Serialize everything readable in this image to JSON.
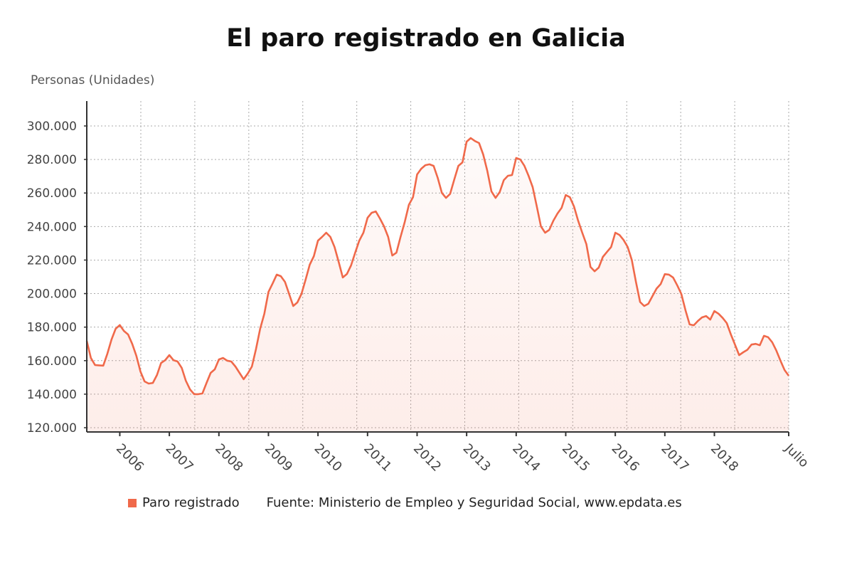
{
  "chart_data": {
    "type": "area",
    "title": "El paro registrado en Galicia",
    "ylabel": "Personas (Unidades)",
    "xlabel": "",
    "x_start": "2005-05",
    "x_end": "2019-07",
    "frequency": "monthly",
    "ylim": [
      120000,
      300000
    ],
    "yticks": [
      120000,
      140000,
      160000,
      180000,
      200000,
      220000,
      240000,
      260000,
      280000,
      300000
    ],
    "ytick_labels": [
      "120.000",
      "140.000",
      "160.000",
      "180.000",
      "200.000",
      "220.000",
      "240.000",
      "260.000",
      "280.000",
      "300.000"
    ],
    "xtick_labels": [
      "2006",
      "2007",
      "2008",
      "2009",
      "2010",
      "2011",
      "2012",
      "2013",
      "2014",
      "2015",
      "2016",
      "2017",
      "2018",
      "Julio"
    ],
    "grid": true,
    "legend_position": "bottom",
    "series": [
      {
        "name": "Paro registrado",
        "color": "#f0694a",
        "values": [
          171800,
          161600,
          157400,
          157200,
          157000,
          164200,
          172600,
          179000,
          181200,
          177700,
          175600,
          170000,
          162900,
          153500,
          147600,
          146300,
          146700,
          151400,
          158600,
          160300,
          163300,
          160300,
          159500,
          155700,
          148000,
          142900,
          140000,
          140000,
          140400,
          146700,
          152700,
          154800,
          160700,
          161600,
          160000,
          159500,
          156500,
          152700,
          148900,
          152300,
          156500,
          167000,
          179000,
          188000,
          201000,
          206000,
          211300,
          210400,
          207000,
          199800,
          192600,
          194700,
          199800,
          208300,
          217200,
          222300,
          231600,
          233800,
          236300,
          233800,
          227800,
          218900,
          209600,
          211700,
          216800,
          224400,
          231600,
          236300,
          245200,
          248200,
          249000,
          244800,
          240100,
          233800,
          222700,
          224400,
          233800,
          242700,
          252900,
          257500,
          271100,
          274500,
          276600,
          277100,
          276200,
          269000,
          260100,
          257100,
          259500,
          268000,
          276200,
          278300,
          290600,
          292800,
          291000,
          289800,
          283000,
          273200,
          261000,
          257100,
          260500,
          267700,
          270300,
          270700,
          280900,
          280000,
          276200,
          270300,
          263500,
          252000,
          240100,
          236300,
          238000,
          243500,
          247800,
          251200,
          258800,
          257500,
          252000,
          243500,
          236300,
          229500,
          215900,
          213300,
          215500,
          221900,
          224900,
          227800,
          236300,
          235000,
          232000,
          227800,
          220000,
          207000,
          195000,
          192600,
          193900,
          198500,
          203000,
          205700,
          211600,
          211300,
          209600,
          205000,
          199800,
          190000,
          181600,
          181100,
          183700,
          185800,
          186600,
          184500,
          189600,
          188000,
          185500,
          182400,
          175600,
          169500,
          163300,
          165000,
          166500,
          169600,
          170000,
          169200,
          174800,
          174000,
          171000,
          166000,
          160000,
          154400,
          151000
        ]
      }
    ],
    "source": "Fuente: Ministerio de Empleo y Seguridad Social, www.epdata.es"
  }
}
